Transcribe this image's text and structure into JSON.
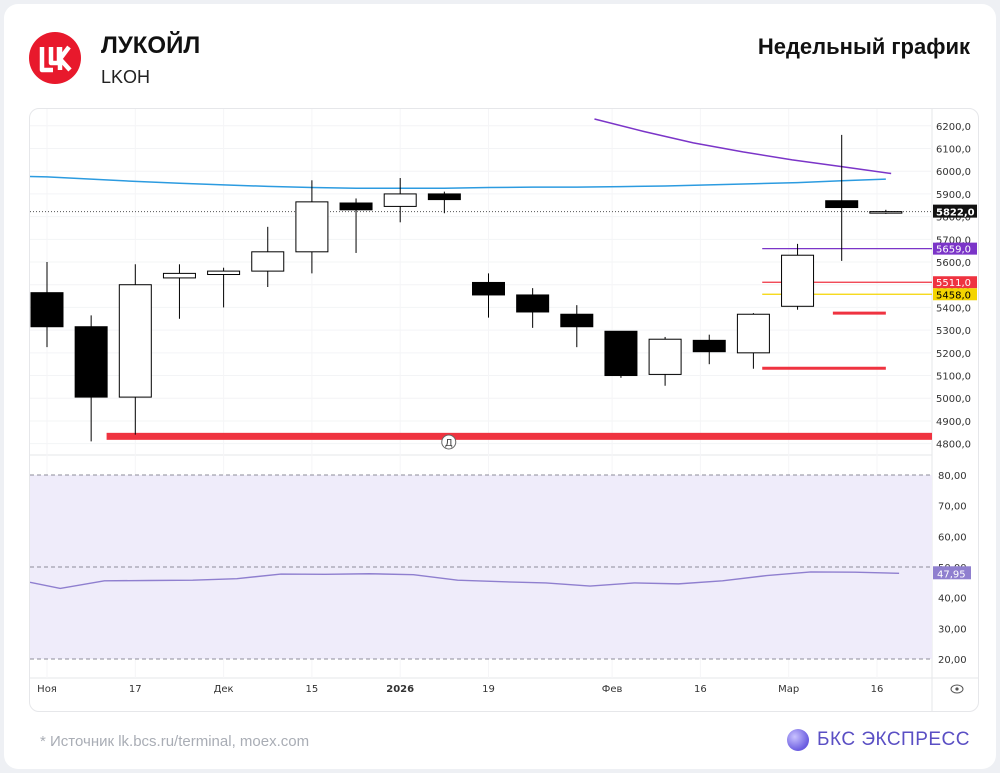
{
  "header": {
    "company": "ЛУКОЙЛ",
    "ticker": "LKOH",
    "chart_title": "Недельный график"
  },
  "footer": {
    "source": "* Источник lk.bcs.ru/terminal, moex.com",
    "brand": "БКС ЭКСПРЕСС"
  },
  "colors": {
    "brand_red": "#e8192c",
    "up_fill": "#ffffff",
    "down_fill": "#000000",
    "ma_blue": "#2c9be0",
    "ma_purple": "#7b35c8",
    "support_red": "#ef3340",
    "yellow_level": "#f4d400",
    "rsi_line": "#8f7fcf",
    "rsi_band": "#efecfa"
  },
  "chart_data": [
    {
      "type": "candlestick",
      "x_labels": [
        "Ноя",
        "17",
        "Дек",
        "15",
        "2026",
        "19",
        "Фев",
        "16",
        "Мар",
        "16"
      ],
      "y_ticks": [
        4800,
        4900,
        5000,
        5100,
        5200,
        5300,
        5400,
        5500,
        5600,
        5700,
        5800,
        5900,
        6000,
        6100,
        6200
      ],
      "y_tick_labels": [
        "4800,0",
        "4900,0",
        "5000,0",
        "5100,0",
        "5200,0",
        "5300,0",
        "5400,0",
        "5500,0",
        "5600,0",
        "5700,0",
        "5800,0",
        "5900,0",
        "6000,0",
        "6100,0",
        "6200,0"
      ],
      "ylim": [
        4750,
        6230
      ],
      "candles": [
        {
          "o": 5465,
          "h": 5600,
          "l": 5225,
          "c": 5315
        },
        {
          "o": 5315,
          "h": 5365,
          "l": 4810,
          "c": 5005
        },
        {
          "o": 5005,
          "h": 5590,
          "l": 4840,
          "c": 5500
        },
        {
          "o": 5530,
          "h": 5590,
          "l": 5350,
          "c": 5550
        },
        {
          "o": 5545,
          "h": 5575,
          "l": 5400,
          "c": 5560
        },
        {
          "o": 5560,
          "h": 5755,
          "l": 5490,
          "c": 5645
        },
        {
          "o": 5645,
          "h": 5960,
          "l": 5550,
          "c": 5865
        },
        {
          "o": 5860,
          "h": 5880,
          "l": 5640,
          "c": 5830
        },
        {
          "o": 5845,
          "h": 5970,
          "l": 5775,
          "c": 5900
        },
        {
          "o": 5900,
          "h": 5910,
          "l": 5815,
          "c": 5875
        },
        {
          "o": 5510,
          "h": 5550,
          "l": 5355,
          "c": 5455
        },
        {
          "o": 5455,
          "h": 5485,
          "l": 5310,
          "c": 5380
        },
        {
          "o": 5370,
          "h": 5410,
          "l": 5225,
          "c": 5315
        },
        {
          "o": 5295,
          "h": 5295,
          "l": 5090,
          "c": 5100
        },
        {
          "o": 5105,
          "h": 5270,
          "l": 5055,
          "c": 5260
        },
        {
          "o": 5255,
          "h": 5280,
          "l": 5150,
          "c": 5205
        },
        {
          "o": 5200,
          "h": 5375,
          "l": 5130,
          "c": 5370
        },
        {
          "o": 5405,
          "h": 5680,
          "l": 5390,
          "c": 5630
        },
        {
          "o": 5870,
          "h": 6160,
          "l": 5605,
          "c": 5840
        },
        {
          "o": 5822,
          "h": 5830,
          "l": 5812,
          "c": 5822
        }
      ],
      "ma_blue": [
        5975,
        5965,
        5955,
        5947,
        5940,
        5933,
        5928,
        5925,
        5925,
        5925,
        5928,
        5930,
        5930,
        5932,
        5935,
        5940,
        5945,
        5950,
        5958,
        5965
      ],
      "ma_purple": {
        "start_index": 12.4,
        "values": [
          6230,
          6175,
          6125,
          6085,
          6050,
          6020,
          5990
        ]
      },
      "horizontal_levels": [
        {
          "price": 4830,
          "label": "",
          "color": "#ef3340",
          "style": "thick"
        },
        {
          "price": 5659,
          "label": "5659,0",
          "color": "#7b35c8",
          "style": "line"
        },
        {
          "price": 5511,
          "label": "5511,0",
          "color": "#ef3340",
          "style": "line"
        },
        {
          "price": 5458,
          "label": "5458,0",
          "color": "#f4d400",
          "style": "line"
        },
        {
          "price": 5375,
          "label": "",
          "color": "#ef3340",
          "style": "segment"
        },
        {
          "price": 5132,
          "label": "",
          "color": "#ef3340",
          "style": "segment"
        }
      ],
      "last_price": {
        "value": 5822,
        "label": "5822,0"
      },
      "marker": "Д"
    },
    {
      "type": "line",
      "series": [
        {
          "values": [
            45.0,
            43.0,
            45.5,
            45.6,
            45.7,
            46.2,
            47.7,
            47.6,
            47.8,
            47.5,
            45.7,
            45.2,
            44.8,
            43.8,
            44.8,
            44.5,
            45.5,
            47.2,
            48.4,
            48.3,
            47.95
          ]
        }
      ],
      "y_ticks": [
        20,
        30,
        40,
        50,
        60,
        70,
        80
      ],
      "y_tick_labels": [
        "20,00",
        "30,00",
        "40,00",
        "50,00",
        "60,00",
        "70,00",
        "80,00"
      ],
      "ylim": [
        20,
        80
      ],
      "band": [
        20,
        80
      ],
      "dashed_levels": [
        20,
        50,
        80
      ],
      "last_value": {
        "value": 47.95,
        "label": "47,95"
      }
    }
  ]
}
